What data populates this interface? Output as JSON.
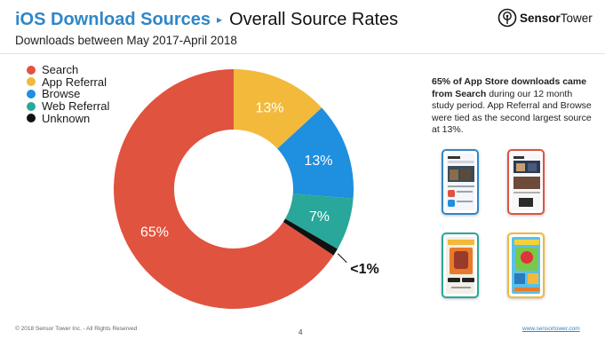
{
  "header": {
    "title_main": "iOS Download Sources",
    "title_separator": "▸",
    "title_sub": "Overall Source Rates",
    "subtitle": "Downloads between May 2017-April 2018",
    "logo_text_bold": "Sensor",
    "logo_text_regular": "Tower",
    "logo_icon": "sensortower-logo-icon"
  },
  "chart_data": {
    "type": "pie",
    "variant": "donut",
    "title": "",
    "legend_position": "top-left",
    "series": [
      {
        "name": "Search",
        "value": 65,
        "label": "65%",
        "color": "#e0533f"
      },
      {
        "name": "App Referral",
        "value": 13,
        "label": "13%",
        "color": "#f2b93b"
      },
      {
        "name": "Browse",
        "value": 13,
        "label": "13%",
        "color": "#1f8fe0"
      },
      {
        "name": "Web Referral",
        "value": 7,
        "label": "7%",
        "color": "#29a79a"
      },
      {
        "name": "Unknown",
        "value": 1,
        "label": "<1%",
        "color": "#111111"
      }
    ]
  },
  "callout": {
    "text_bold": "65% of App Store downloads came from Search",
    "text_rest": " during our 12 month study period. App Referral and Browse were tied as the second largest source at 13%."
  },
  "phones": [
    {
      "name": "app-store-search-screenshot",
      "frame_color": "#2e86cc"
    },
    {
      "name": "app-store-today-screenshot",
      "frame_color": "#e0533f"
    },
    {
      "name": "app-store-game-screenshot",
      "frame_color": "#29a79a"
    },
    {
      "name": "app-store-angry-birds-screenshot",
      "frame_color": "#f2b93b"
    }
  ],
  "footer": {
    "copyright": "© 2018 Sensor Tower Inc. - All Rights Reserved",
    "page_number": "4",
    "website": "www.sensortower.com"
  }
}
